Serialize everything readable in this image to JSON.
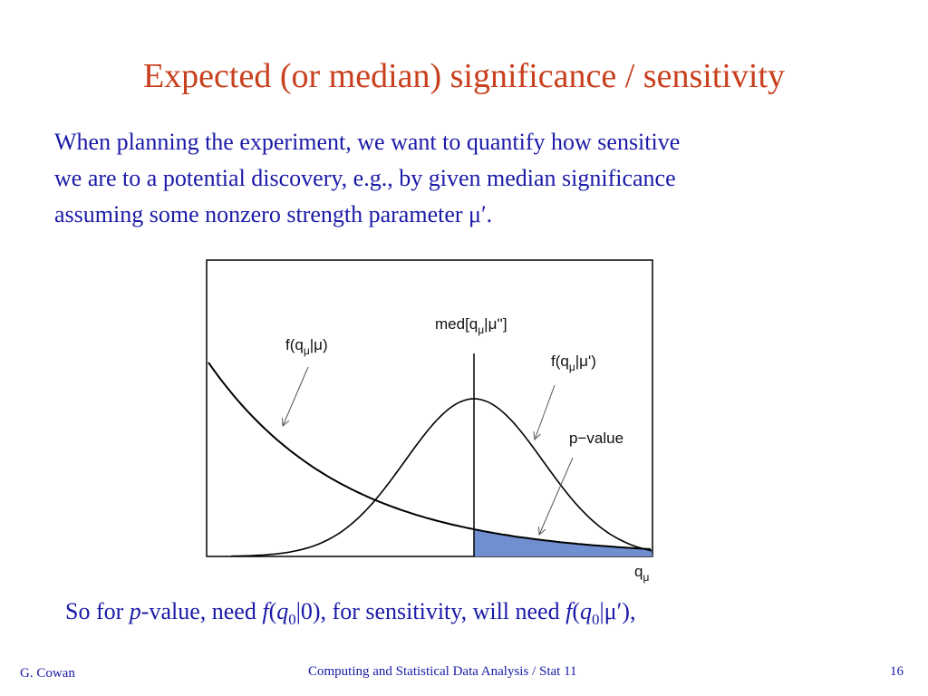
{
  "header": {
    "title": "Expected (or median) significance / sensitivity"
  },
  "body": {
    "lines": [
      "When planning the experiment, we want to quantify how sensitive",
      "we are to a potential discovery, e.g., by given median significance",
      "assuming some nonzero strength parameter μ′."
    ]
  },
  "figure": {
    "label_null": [
      "f(q",
      "μ",
      "|μ)"
    ],
    "label_median": [
      "med[q",
      "μ",
      "|μ'']"
    ],
    "label_alt": [
      "f(q",
      "μ",
      "|μ')"
    ],
    "label_pvalue": "p−value",
    "label_axis": [
      "q",
      "μ"
    ]
  },
  "conclusion": [
    "So for ",
    "p",
    "-value, need ",
    "f",
    "(",
    "q",
    "0",
    "|0), for sensitivity, will need ",
    "f",
    "(",
    "q",
    "0",
    "|μ′),"
  ],
  "footer": {
    "author": "G. Cowan",
    "course": "Computing and Statistical Data Analysis / Stat 11",
    "page": "16"
  }
}
